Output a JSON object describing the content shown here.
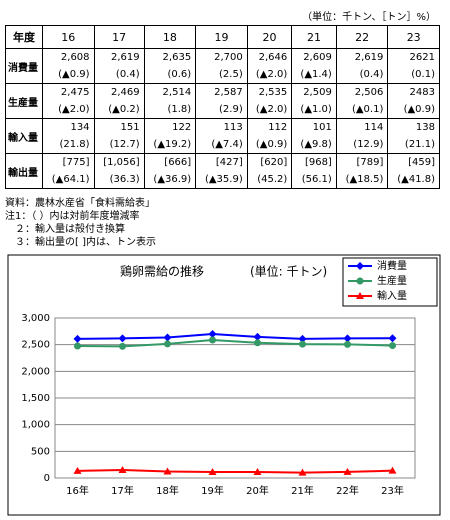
{
  "table": {
    "unit": "（単位：千トン、［トン］%）",
    "header": [
      "年度",
      "16",
      "17",
      "18",
      "19",
      "20",
      "21",
      "22",
      "23"
    ],
    "rows": [
      {
        "label": "消費量",
        "values": [
          "2,608",
          "2,619",
          "2,635",
          "2,700",
          "2,646",
          "2,609",
          "2,619",
          "2621"
        ],
        "changes": [
          "(▲0.9)",
          "(0.4)",
          "(0.6)",
          "(2.5)",
          "(▲2.0)",
          "(▲1.4)",
          "(0.4)",
          "(0.1)"
        ]
      },
      {
        "label": "生産量",
        "values": [
          "2,475",
          "2,469",
          "2,514",
          "2,587",
          "2,535",
          "2,509",
          "2,506",
          "2483"
        ],
        "changes": [
          "(▲2.0)",
          "(▲0.2)",
          "(1.8)",
          "(2.9)",
          "(▲2.0)",
          "(▲1.0)",
          "(▲0.1)",
          "(▲0.9)"
        ]
      },
      {
        "label": "輸入量",
        "values": [
          "134",
          "151",
          "122",
          "113",
          "112",
          "101",
          "114",
          "138"
        ],
        "changes": [
          "(21.8)",
          "(12.7)",
          "(▲19.2)",
          "(▲7.4)",
          "(▲0.9)",
          "(▲9.8)",
          "(12.9)",
          "(21.1)"
        ]
      },
      {
        "label": "輸出量",
        "values": [
          "[775]",
          "[1,056]",
          "[666]",
          "[427]",
          "[620]",
          "[968]",
          "[789]",
          "[459]"
        ],
        "changes": [
          "(▲64.1)",
          "(36.3)",
          "(▲36.9)",
          "(▲35.9)",
          "(45.2)",
          "(56.1)",
          "(▲18.5)",
          "(▲41.8)"
        ]
      }
    ]
  },
  "notes": [
    "資料：農林水産省「食料需給表」",
    "注1：（ ）内は対前年度増減率",
    "　２：輸入量は殻付き換算",
    "　３：輸出量の[ ]内は、トン表示"
  ],
  "chart_data": {
    "type": "line",
    "title": "鶏卵需給の推移",
    "subtitle": "(単位: 千トン)",
    "categories": [
      "16年",
      "17年",
      "18年",
      "19年",
      "20年",
      "21年",
      "22年",
      "23年"
    ],
    "series": [
      {
        "name": "消費量",
        "color": "#0000ff",
        "marker": "diamond",
        "values": [
          2608,
          2619,
          2635,
          2700,
          2646,
          2609,
          2619,
          2621
        ]
      },
      {
        "name": "生産量",
        "color": "#339966",
        "marker": "circle",
        "values": [
          2475,
          2469,
          2514,
          2587,
          2535,
          2509,
          2506,
          2483
        ]
      },
      {
        "name": "輸入量",
        "color": "#ff0000",
        "marker": "triangle",
        "values": [
          134,
          151,
          122,
          113,
          112,
          101,
          114,
          138
        ]
      }
    ],
    "ylim": [
      0,
      3000
    ],
    "yticks": [
      0,
      {
        "value": 500,
        "label": "500"
      },
      {
        "value": 1000,
        "label": "1,000"
      },
      {
        "value": 1500,
        "label": "1,500"
      },
      {
        "value": 2000,
        "label": "2,000"
      },
      {
        "value": 2500,
        "label": "2,500"
      },
      {
        "value": 3000,
        "label": "3,000"
      }
    ],
    "grid": true,
    "legend": "top-right"
  }
}
